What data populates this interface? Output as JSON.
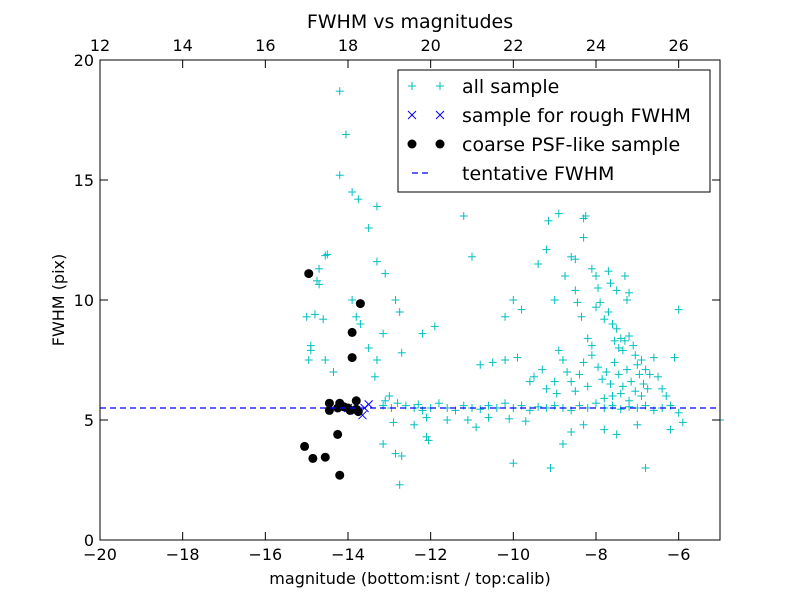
{
  "chart_data": {
    "type": "scatter",
    "title": "FWHM vs magnitudes",
    "xlabel": "magnitude (bottom:isnt / top:calib)",
    "ylabel": "FWHM (pix)",
    "xlim": [
      -20,
      -5
    ],
    "ylim": [
      0,
      20
    ],
    "top_xlim": [
      12,
      27
    ],
    "x_ticks": [
      -20,
      -18,
      -16,
      -14,
      -12,
      -10,
      -8,
      -6
    ],
    "x_tick_labels": [
      "−20",
      "−18",
      "−16",
      "−14",
      "−12",
      "−10",
      "−8",
      "−6"
    ],
    "top_ticks": [
      12,
      14,
      16,
      18,
      20,
      22,
      24,
      26
    ],
    "top_tick_labels": [
      "12",
      "14",
      "16",
      "18",
      "20",
      "22",
      "24",
      "26"
    ],
    "y_ticks": [
      0,
      5,
      10,
      15,
      20
    ],
    "y_tick_labels": [
      "0",
      "5",
      "10",
      "15",
      "20"
    ],
    "grid": false,
    "legend_position": "top-right",
    "series": [
      {
        "name": "all sample",
        "marker": "plus",
        "color": "#00bfbf",
        "points": [
          [
            -14.2,
            18.7
          ],
          [
            -14.05,
            16.9
          ],
          [
            -14.2,
            15.2
          ],
          [
            -13.9,
            14.5
          ],
          [
            -13.75,
            14.2
          ],
          [
            -13.3,
            13.9
          ],
          [
            -13.5,
            13
          ],
          [
            -14.5,
            11.9
          ],
          [
            -14.55,
            11.85
          ],
          [
            -14.7,
            11.3
          ],
          [
            -14.75,
            10.8
          ],
          [
            -14.7,
            10.65
          ],
          [
            -13.3,
            11.6
          ],
          [
            -13.1,
            11.1
          ],
          [
            -15.0,
            9.3
          ],
          [
            -14.8,
            9.4
          ],
          [
            -14.6,
            9.2
          ],
          [
            -14.9,
            8.1
          ],
          [
            -14.9,
            7.9
          ],
          [
            -14.95,
            7.5
          ],
          [
            -14.55,
            7.5
          ],
          [
            -14.35,
            7.0
          ],
          [
            -13.9,
            10.0
          ],
          [
            -13.8,
            9.3
          ],
          [
            -13.5,
            8.0
          ],
          [
            -13.7,
            9.0
          ],
          [
            -13.3,
            7.5
          ],
          [
            -13.15,
            8.6
          ],
          [
            -13.35,
            6.8
          ],
          [
            -12.85,
            10.0
          ],
          [
            -12.75,
            9.5
          ],
          [
            -12.7,
            7.8
          ],
          [
            -13.0,
            6.0
          ],
          [
            -13.1,
            5.8
          ],
          [
            -13.15,
            5.6
          ],
          [
            -12.95,
            5.5
          ],
          [
            -12.8,
            5.7
          ],
          [
            -12.6,
            5.6
          ],
          [
            -12.4,
            5.5
          ],
          [
            -12.3,
            5.65
          ],
          [
            -12.2,
            5.4
          ],
          [
            -12.0,
            5.5
          ],
          [
            -11.8,
            5.7
          ],
          [
            -11.6,
            5.5
          ],
          [
            -11.4,
            5.4
          ],
          [
            -11.2,
            5.6
          ],
          [
            -11.0,
            5.5
          ],
          [
            -10.8,
            5.45
          ],
          [
            -10.6,
            5.6
          ],
          [
            -10.4,
            5.5
          ],
          [
            -10.2,
            5.7
          ],
          [
            -10.0,
            5.5
          ],
          [
            -9.8,
            5.6
          ],
          [
            -9.6,
            5.4
          ],
          [
            -9.4,
            5.55
          ],
          [
            -9.2,
            5.5
          ],
          [
            -9.0,
            5.6
          ],
          [
            -8.8,
            5.5
          ],
          [
            -8.6,
            5.4
          ],
          [
            -8.4,
            5.6
          ],
          [
            -8.2,
            5.5
          ],
          [
            -8.0,
            5.7
          ],
          [
            -7.8,
            5.5
          ],
          [
            -7.6,
            5.6
          ],
          [
            -7.4,
            5.45
          ],
          [
            -7.2,
            5.55
          ],
          [
            -7.0,
            5.5
          ],
          [
            -6.8,
            5.6
          ],
          [
            -6.6,
            5.4
          ],
          [
            -6.4,
            5.5
          ],
          [
            -6.2,
            5.6
          ],
          [
            -6.0,
            5.3
          ],
          [
            -12.9,
            4.9
          ],
          [
            -13.15,
            4.0
          ],
          [
            -12.85,
            3.6
          ],
          [
            -12.7,
            3.5
          ],
          [
            -12.75,
            2.3
          ],
          [
            -12.1,
            4.3
          ],
          [
            -12.05,
            4.15
          ],
          [
            -12.1,
            5.1
          ],
          [
            -11.6,
            5.0
          ],
          [
            -11.1,
            5.0
          ],
          [
            -10.6,
            5.1
          ],
          [
            -10.1,
            5.05
          ],
          [
            -9.7,
            4.95
          ],
          [
            -12.4,
            4.8
          ],
          [
            -10.9,
            4.7
          ],
          [
            -10.0,
            3.2
          ],
          [
            -9.1,
            3.0
          ],
          [
            -8.8,
            4.0
          ],
          [
            -8.6,
            4.5
          ],
          [
            -8.3,
            4.8
          ],
          [
            -7.8,
            4.6
          ],
          [
            -7.5,
            4.4
          ],
          [
            -7.0,
            4.8
          ],
          [
            -6.8,
            3.0
          ],
          [
            -6.2,
            4.6
          ],
          [
            -5.9,
            4.9
          ],
          [
            -5.0,
            5.0
          ],
          [
            -12.2,
            8.6
          ],
          [
            -11.9,
            8.9
          ],
          [
            -11.2,
            13.5
          ],
          [
            -11.0,
            11.8
          ],
          [
            -10.8,
            7.3
          ],
          [
            -10.5,
            7.4
          ],
          [
            -10.2,
            7.5
          ],
          [
            -9.9,
            7.6
          ],
          [
            -9.6,
            6.6
          ],
          [
            -9.8,
            9.6
          ],
          [
            -10.0,
            10.0
          ],
          [
            -10.2,
            9.3
          ],
          [
            -9.4,
            11.5
          ],
          [
            -9.2,
            12.1
          ],
          [
            -9.15,
            13.3
          ],
          [
            -9.0,
            10.0
          ],
          [
            -8.9,
            13.6
          ],
          [
            -8.75,
            11.0
          ],
          [
            -8.6,
            11.8
          ],
          [
            -8.5,
            11.7
          ],
          [
            -8.3,
            13.4
          ],
          [
            -8.25,
            13.5
          ],
          [
            -8.3,
            12.6
          ],
          [
            -8.1,
            11.3
          ],
          [
            -8.0,
            11.0
          ],
          [
            -7.95,
            10.5
          ],
          [
            -7.7,
            11.2
          ],
          [
            -7.65,
            10.7
          ],
          [
            -7.5,
            10.4
          ],
          [
            -7.3,
            11.0
          ],
          [
            -7.25,
            10.0
          ],
          [
            -7.2,
            10.3
          ],
          [
            -8.5,
            10.4
          ],
          [
            -8.45,
            9.9
          ],
          [
            -8.35,
            9.3
          ],
          [
            -8.2,
            8.4
          ],
          [
            -8.1,
            8.1
          ],
          [
            -8.0,
            9.7
          ],
          [
            -7.9,
            9.9
          ],
          [
            -7.8,
            9.2
          ],
          [
            -7.7,
            9.5
          ],
          [
            -7.6,
            9.0
          ],
          [
            -7.55,
            8.3
          ],
          [
            -7.5,
            8.8
          ],
          [
            -7.45,
            8.0
          ],
          [
            -7.4,
            8.4
          ],
          [
            -7.35,
            7.9
          ],
          [
            -7.3,
            8.3
          ],
          [
            -7.2,
            8.5
          ],
          [
            -7.1,
            8.1
          ],
          [
            -7.05,
            7.7
          ],
          [
            -7.0,
            7.3
          ],
          [
            -6.9,
            7.5
          ],
          [
            -6.8,
            7.1
          ],
          [
            -6.7,
            6.9
          ],
          [
            -6.6,
            7.6
          ],
          [
            -6.5,
            6.8
          ],
          [
            -6.4,
            6.3
          ],
          [
            -6.3,
            6.0
          ],
          [
            -6.1,
            7.6
          ],
          [
            -6.0,
            9.6
          ],
          [
            -8.9,
            7.9
          ],
          [
            -8.8,
            7.5
          ],
          [
            -8.7,
            7.0
          ],
          [
            -8.6,
            6.6
          ],
          [
            -8.5,
            6.2
          ],
          [
            -8.4,
            6.9
          ],
          [
            -8.3,
            7.4
          ],
          [
            -8.2,
            6.4
          ],
          [
            -8.1,
            7.7
          ],
          [
            -7.95,
            7.2
          ],
          [
            -7.85,
            6.7
          ],
          [
            -7.75,
            7.0
          ],
          [
            -7.65,
            6.5
          ],
          [
            -7.55,
            7.4
          ],
          [
            -7.45,
            6.9
          ],
          [
            -7.35,
            6.4
          ],
          [
            -7.25,
            7.1
          ],
          [
            -7.15,
            6.6
          ],
          [
            -7.05,
            6.2
          ],
          [
            -6.95,
            6.9
          ],
          [
            -6.85,
            6.5
          ],
          [
            -6.75,
            6.3
          ],
          [
            -9.3,
            7.1
          ],
          [
            -9.5,
            6.8
          ],
          [
            -9.0,
            6.6
          ],
          [
            -8.95,
            6.1
          ],
          [
            -9.2,
            6.3
          ],
          [
            -7.8,
            5.9
          ],
          [
            -7.6,
            6.0
          ],
          [
            -7.4,
            6.1
          ],
          [
            -7.2,
            5.8
          ],
          [
            -6.9,
            6.0
          ]
        ]
      },
      {
        "name": "sample for rough FWHM",
        "marker": "x",
        "color": "#0000ff",
        "points": [
          [
            -13.5,
            5.65
          ],
          [
            -13.6,
            5.5
          ],
          [
            -13.65,
            5.2
          ],
          [
            -13.8,
            5.4
          ],
          [
            -14.0,
            5.5
          ]
        ]
      },
      {
        "name": "coarse PSF-like sample",
        "marker": "dot",
        "color": "#000000",
        "points": [
          [
            -14.95,
            11.1
          ],
          [
            -13.7,
            9.85
          ],
          [
            -13.9,
            8.65
          ],
          [
            -13.9,
            7.6
          ],
          [
            -14.45,
            5.7
          ],
          [
            -14.2,
            5.7
          ],
          [
            -14.1,
            5.55
          ],
          [
            -14.0,
            5.5
          ],
          [
            -13.95,
            5.4
          ],
          [
            -13.8,
            5.45
          ],
          [
            -13.75,
            5.35
          ],
          [
            -14.45,
            5.4
          ],
          [
            -14.25,
            5.5
          ],
          [
            -13.8,
            5.8
          ],
          [
            -15.05,
            3.9
          ],
          [
            -14.85,
            3.4
          ],
          [
            -14.55,
            3.45
          ],
          [
            -14.25,
            4.4
          ],
          [
            -14.2,
            2.7
          ]
        ]
      },
      {
        "name": "tentative FWHM",
        "marker": "dashed-line",
        "color": "#0000ff",
        "y": 5.5
      }
    ]
  }
}
